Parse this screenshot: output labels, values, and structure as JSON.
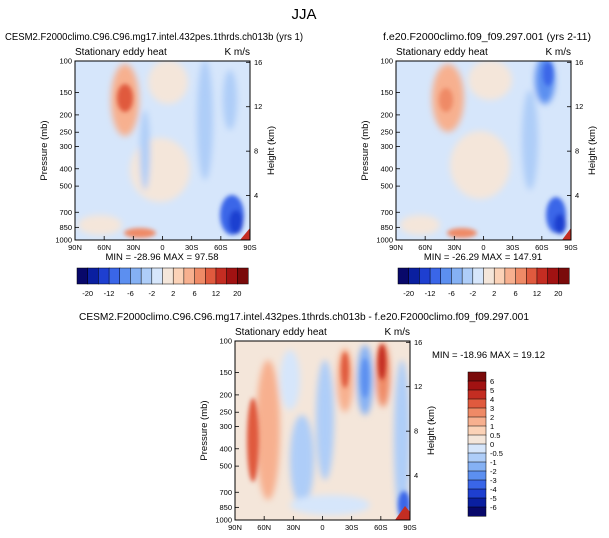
{
  "figure": {
    "title": "JJA"
  },
  "chart_data": [
    {
      "type": "heatmap",
      "title": "CESM2.F2000climo.C96.C96.mg17.intel.432pes.1thrds.ch013b (yrs 1)",
      "subtitle": "Stationary eddy heat",
      "units": "K m/s",
      "ylabel": "Pressure (mb)",
      "ylabel_right": "Height (km)",
      "x_ticks": [
        "90N",
        "60N",
        "30N",
        "0",
        "30S",
        "60S",
        "90S"
      ],
      "y_ticks": [
        "100",
        "150",
        "200",
        "250",
        "300",
        "400",
        "500",
        "700",
        "850",
        "1000"
      ],
      "y_ticks_right": [
        "4",
        "8",
        "12",
        "16"
      ],
      "stats_text": "MIN = -28.96   MAX = 97.58",
      "min": -28.96,
      "max": 97.58
    },
    {
      "type": "heatmap",
      "title": "f.e20.F2000climo.f09_f09.297.001 (yrs 2-11)",
      "subtitle": "Stationary eddy heat",
      "units": "K m/s",
      "ylabel": "Pressure (mb)",
      "ylabel_right": "Height (km)",
      "x_ticks": [
        "90N",
        "60N",
        "30N",
        "0",
        "30S",
        "60S",
        "90S"
      ],
      "y_ticks": [
        "100",
        "150",
        "200",
        "250",
        "300",
        "400",
        "500",
        "700",
        "850",
        "1000"
      ],
      "y_ticks_right": [
        "4",
        "8",
        "12",
        "16"
      ],
      "stats_text": "MIN = -26.29   MAX = 147.91",
      "min": -26.29,
      "max": 147.91
    },
    {
      "type": "heatmap",
      "title": "CESM2.F2000climo.C96.C96.mg17.intel.432pes.1thrds.ch013b - f.e20.F2000climo.f09_f09.297.001",
      "subtitle": "Stationary eddy heat",
      "units": "K m/s",
      "ylabel": "Pressure (mb)",
      "ylabel_right": "Height (km)",
      "x_ticks": [
        "90N",
        "60N",
        "30N",
        "0",
        "30S",
        "60S",
        "90S"
      ],
      "y_ticks": [
        "100",
        "150",
        "200",
        "250",
        "300",
        "400",
        "500",
        "700",
        "850",
        "1000"
      ],
      "y_ticks_right": [
        "4",
        "8",
        "12",
        "16"
      ],
      "stats_text": "MIN = -18.96   MAX =  19.12",
      "min": -18.96,
      "max": 19.12
    }
  ],
  "colorbar_main": {
    "labels": [
      "-20",
      "-12",
      "-6",
      "-2",
      "2",
      "6",
      "12",
      "20"
    ],
    "colors": [
      "#08086a",
      "#0a1fa0",
      "#1e3fd0",
      "#3a66e8",
      "#5c8ff0",
      "#85b1f4",
      "#aecdf8",
      "#d6e6fb",
      "#f4e6da",
      "#fbd2b7",
      "#f7b08f",
      "#ef8a66",
      "#e05a3e",
      "#c42d22",
      "#a11212",
      "#7a0a0a"
    ]
  },
  "colorbar_diff": {
    "labels": [
      "6",
      "5",
      "4",
      "3",
      "2",
      "1",
      "0.5",
      "0",
      "-0.5",
      "-1",
      "-2",
      "-3",
      "-4",
      "-5",
      "-6"
    ],
    "colors": [
      "#7a0a0a",
      "#a11212",
      "#c42d22",
      "#e05a3e",
      "#ef8a66",
      "#f7b08f",
      "#fbd2b7",
      "#f4e6da",
      "#d6e6fb",
      "#aecdf8",
      "#85b1f4",
      "#5c8ff0",
      "#3a66e8",
      "#1e3fd0",
      "#0a1fa0",
      "#08086a"
    ]
  }
}
